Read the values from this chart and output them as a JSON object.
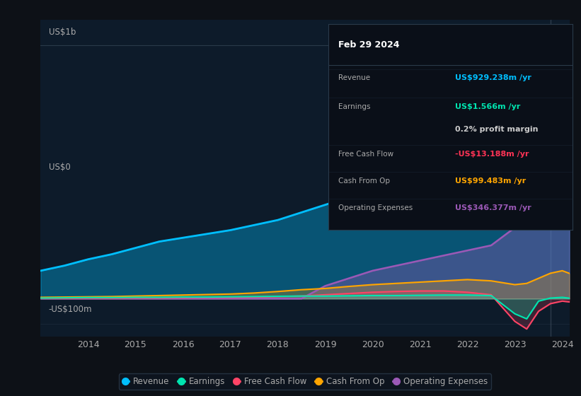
{
  "bg_color": "#0d1117",
  "plot_bg_color": "#0d1b2a",
  "grid_color": "#2a3a4a",
  "text_color": "#aaaaaa",
  "title_color": "#ffffff",
  "years": [
    2013.0,
    2013.5,
    2014.0,
    2014.5,
    2015.0,
    2015.5,
    2016.0,
    2016.5,
    2017.0,
    2017.5,
    2018.0,
    2018.5,
    2019.0,
    2019.5,
    2020.0,
    2020.5,
    2021.0,
    2021.5,
    2022.0,
    2022.5,
    2023.0,
    2023.25,
    2023.5,
    2023.75,
    2024.0,
    2024.15
  ],
  "revenue": [
    110,
    130,
    155,
    175,
    200,
    225,
    240,
    255,
    270,
    290,
    310,
    340,
    370,
    400,
    430,
    455,
    480,
    510,
    560,
    620,
    700,
    820,
    880,
    930,
    940,
    929
  ],
  "earnings": [
    2,
    3,
    4,
    4,
    5,
    5,
    6,
    6,
    7,
    8,
    9,
    10,
    10,
    11,
    12,
    12,
    13,
    14,
    14,
    12,
    -60,
    -80,
    -10,
    2,
    5,
    1.566
  ],
  "free_cash_flow": [
    1,
    1,
    2,
    2,
    3,
    3,
    4,
    5,
    5,
    6,
    8,
    10,
    15,
    20,
    25,
    28,
    30,
    30,
    25,
    15,
    -90,
    -120,
    -50,
    -20,
    -10,
    -13.188
  ],
  "cash_from_op": [
    5,
    6,
    7,
    8,
    10,
    12,
    14,
    16,
    18,
    22,
    28,
    35,
    40,
    48,
    55,
    60,
    65,
    70,
    75,
    70,
    55,
    60,
    80,
    100,
    110,
    99.483
  ],
  "operating_expenses": [
    0,
    0,
    0,
    0,
    0,
    0,
    0,
    0,
    0,
    0,
    0,
    0,
    50,
    80,
    110,
    130,
    150,
    170,
    190,
    210,
    280,
    340,
    380,
    346,
    320,
    346.377
  ],
  "revenue_color": "#00bfff",
  "earnings_color": "#00e5b0",
  "fcf_color": "#ff4466",
  "cashop_color": "#ffa500",
  "opex_color": "#9b59b6",
  "revenue_fill_alpha": 0.35,
  "earnings_fill_alpha": 0.25,
  "fcf_fill_alpha": 0.2,
  "cashop_fill_alpha": 0.25,
  "opex_fill_alpha": 0.35,
  "ylim_min": -150,
  "ylim_max": 1100,
  "xtick_vals": [
    2014,
    2015,
    2016,
    2017,
    2018,
    2019,
    2020,
    2021,
    2022,
    2023,
    2024
  ],
  "xtick_labels": [
    "2014",
    "2015",
    "2016",
    "2017",
    "2018",
    "2019",
    "2020",
    "2021",
    "2022",
    "2023",
    "2024"
  ],
  "ylabel_top": "US$1b",
  "ylabel_zero": "US$0",
  "ylabel_neg": "-US$100m",
  "tooltip_title": "Feb 29 2024",
  "legend_labels": [
    "Revenue",
    "Earnings",
    "Free Cash Flow",
    "Cash From Op",
    "Operating Expenses"
  ],
  "legend_colors": [
    "#00bfff",
    "#00e5b0",
    "#ff4466",
    "#ffa500",
    "#9b59b6"
  ]
}
